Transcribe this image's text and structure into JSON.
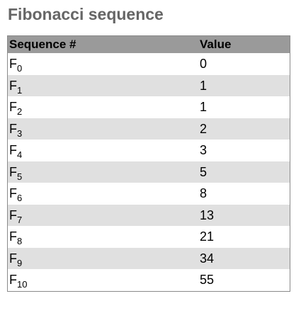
{
  "title": "Fibonacci sequence",
  "table": {
    "headers": [
      "Sequence #",
      "Value"
    ],
    "rows": [
      {
        "name": "F",
        "sub": "0",
        "value": "0"
      },
      {
        "name": "F",
        "sub": "1",
        "value": "1"
      },
      {
        "name": "F",
        "sub": "2",
        "value": "1"
      },
      {
        "name": "F",
        "sub": "3",
        "value": "2"
      },
      {
        "name": "F",
        "sub": "4",
        "value": "3"
      },
      {
        "name": "F",
        "sub": "5",
        "value": "5"
      },
      {
        "name": "F",
        "sub": "6",
        "value": "8"
      },
      {
        "name": "F",
        "sub": "7",
        "value": "13"
      },
      {
        "name": "F",
        "sub": "8",
        "value": "21"
      },
      {
        "name": "F",
        "sub": "9",
        "value": "34"
      },
      {
        "name": "F",
        "sub": "10",
        "value": "55"
      }
    ]
  },
  "colors": {
    "title": "#666666",
    "header_bg": "#9a9a9a",
    "stripe_bg": "#e0e0e0",
    "border": "#8a8a8a"
  }
}
